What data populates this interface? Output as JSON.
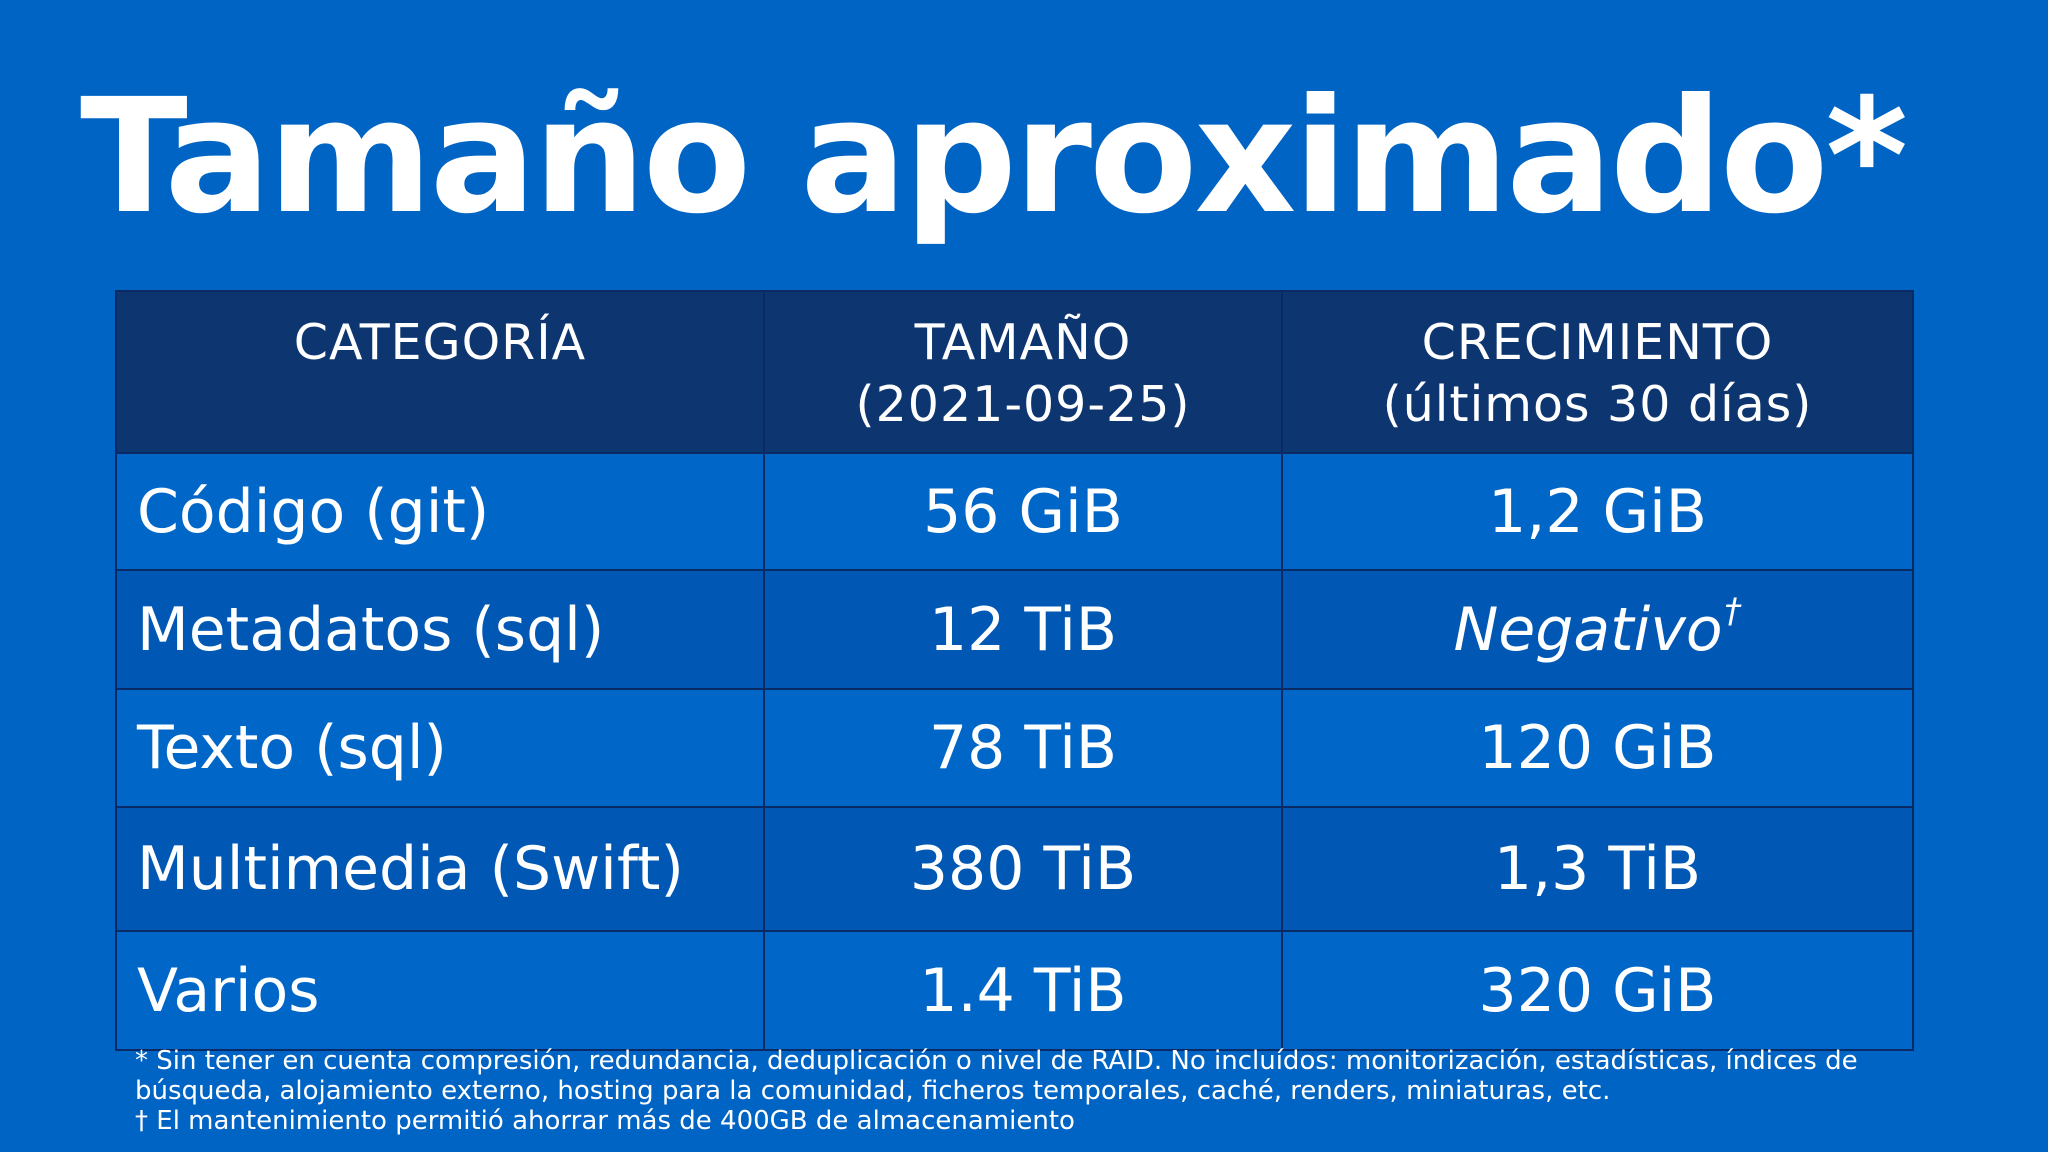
{
  "title": "Tamaño aproximado*",
  "table": {
    "headers": [
      {
        "line1": "CATEGORÍA",
        "line2": ""
      },
      {
        "line1": "TAMAÑO",
        "line2": "(2021-09-25)"
      },
      {
        "line1": "CRECIMIENTO",
        "line2": "(últimos 30 días)"
      }
    ],
    "rows": [
      {
        "category": "Código (git)",
        "size": "56 GiB",
        "growth": "1,2 GiB"
      },
      {
        "category": "Metadatos (sql)",
        "size": "12 TiB",
        "growth": "Negativo",
        "growth_mark": "†"
      },
      {
        "category": "Texto (sql)",
        "size": "78 TiB",
        "growth": "120 GiB"
      },
      {
        "category": "Multimedia (Swift)",
        "size": "380 TiB",
        "growth": "1,3 TiB"
      },
      {
        "category": "Varios",
        "size": "1.4 TiB",
        "growth": "320 GiB"
      }
    ]
  },
  "footnotes": {
    "asterisk_line1": "* Sin tener en cuenta compresión, redundancia, deduplicación o nivel de RAID. No incluídos: monitorización, estadísticas, índices de",
    "asterisk_line2": "búsqueda, alojamiento externo, hosting para la comunidad, ficheros temporales, caché, renders, miniaturas, etc.",
    "dagger": "† El mantenimiento permitió ahorrar más de 400GB de almacenamiento"
  },
  "colors": {
    "background": "#0064c4",
    "header_row": "#0d3570",
    "row_light": "#0066c8",
    "row_dark": "#0058b4",
    "border": "#0a2a66",
    "text": "#ffffff"
  }
}
